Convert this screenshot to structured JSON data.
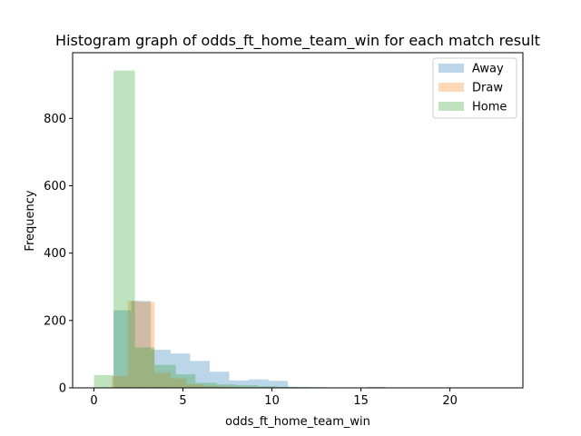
{
  "chart_data": {
    "type": "bar",
    "title": "Histogram graph of odds_ft_home_team_win for each match result",
    "xlabel": "odds_ft_home_team_win",
    "ylabel": "Frequency",
    "xlim": [
      -1.2,
      24.1
    ],
    "ylim": [
      0,
      995
    ],
    "xticks": [
      "0",
      "5",
      "10",
      "15",
      "20"
    ],
    "yticks": [
      "0",
      "200",
      "400",
      "600",
      "800"
    ],
    "legend_position": "top-right",
    "grid": false,
    "series": [
      {
        "name": "Away",
        "color": "#1f77b4",
        "bins": [
          {
            "x0": 1.1,
            "x1": 2.1,
            "count": 230
          },
          {
            "x0": 2.1,
            "x1": 3.2,
            "count": 258
          },
          {
            "x0": 3.2,
            "x1": 4.3,
            "count": 113
          },
          {
            "x0": 4.3,
            "x1": 5.4,
            "count": 102
          },
          {
            "x0": 5.4,
            "x1": 6.5,
            "count": 80
          },
          {
            "x0": 6.5,
            "x1": 7.6,
            "count": 48
          },
          {
            "x0": 7.6,
            "x1": 8.7,
            "count": 22
          },
          {
            "x0": 8.7,
            "x1": 9.8,
            "count": 25
          },
          {
            "x0": 9.8,
            "x1": 10.9,
            "count": 21
          },
          {
            "x0": 10.9,
            "x1": 12.0,
            "count": 3
          },
          {
            "x0": 12.0,
            "x1": 13.1,
            "count": 2
          },
          {
            "x0": 13.1,
            "x1": 14.2,
            "count": 1
          },
          {
            "x0": 14.2,
            "x1": 15.3,
            "count": 1
          },
          {
            "x0": 15.3,
            "x1": 16.4,
            "count": 3
          }
        ]
      },
      {
        "name": "Draw",
        "color": "#ff7f0e",
        "bins": [
          {
            "x0": 1.0,
            "x1": 1.9,
            "count": 35
          },
          {
            "x0": 1.9,
            "x1": 2.5,
            "count": 258
          },
          {
            "x0": 2.5,
            "x1": 3.4,
            "count": 255
          },
          {
            "x0": 3.4,
            "x1": 4.3,
            "count": 45
          },
          {
            "x0": 4.3,
            "x1": 5.2,
            "count": 28
          },
          {
            "x0": 5.2,
            "x1": 6.1,
            "count": 11
          },
          {
            "x0": 6.1,
            "x1": 7.0,
            "count": 6
          },
          {
            "x0": 7.0,
            "x1": 8.0,
            "count": 4
          }
        ]
      },
      {
        "name": "Home",
        "color": "#2ca02c",
        "bins": [
          {
            "x0": 0.0,
            "x1": 1.1,
            "count": 38
          },
          {
            "x0": 1.1,
            "x1": 2.3,
            "count": 942
          },
          {
            "x0": 2.3,
            "x1": 3.4,
            "count": 120
          },
          {
            "x0": 3.4,
            "x1": 4.6,
            "count": 68
          },
          {
            "x0": 4.6,
            "x1": 5.7,
            "count": 40
          },
          {
            "x0": 5.7,
            "x1": 6.9,
            "count": 15
          },
          {
            "x0": 6.9,
            "x1": 8.0,
            "count": 10
          },
          {
            "x0": 8.0,
            "x1": 9.2,
            "count": 8
          },
          {
            "x0": 9.2,
            "x1": 10.3,
            "count": 5
          },
          {
            "x0": 10.3,
            "x1": 11.5,
            "count": 3
          },
          {
            "x0": 11.5,
            "x1": 12.6,
            "count": 2
          },
          {
            "x0": 12.6,
            "x1": 13.8,
            "count": 1
          },
          {
            "x0": 13.8,
            "x1": 17.2,
            "count": 1
          },
          {
            "x0": 17.2,
            "x1": 23.0,
            "count": 1
          }
        ]
      }
    ]
  }
}
